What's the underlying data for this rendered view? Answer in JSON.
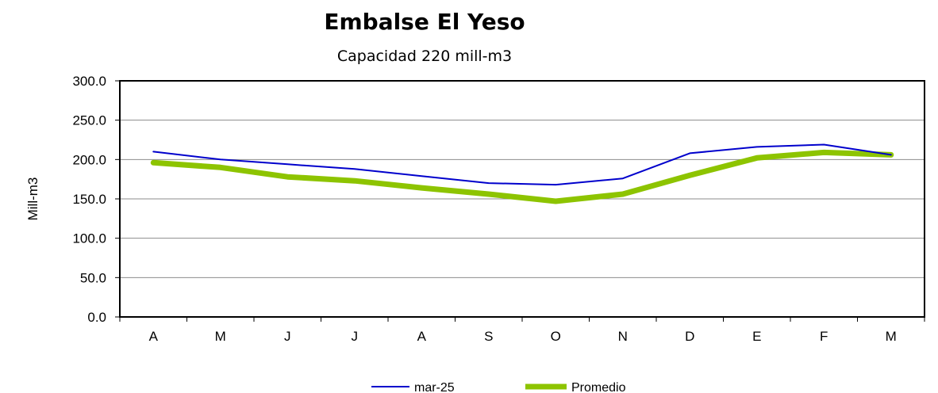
{
  "chart_data": {
    "type": "line",
    "title": "Embalse El Yeso",
    "subtitle": "Capacidad 220 mill-m3",
    "ylabel": "Mill-m3",
    "xlabel": "",
    "categories": [
      "A",
      "M",
      "J",
      "J",
      "A",
      "S",
      "O",
      "N",
      "D",
      "E",
      "F",
      "M"
    ],
    "ylim": [
      0,
      300
    ],
    "yticks": [
      "0.0",
      "50.0",
      "100.0",
      "150.0",
      "200.0",
      "250.0",
      "300.0"
    ],
    "grid": true,
    "legend_position": "bottom",
    "series": [
      {
        "name": "mar-25",
        "color": "#0000CC",
        "values": [
          210,
          200,
          194,
          188,
          179,
          170,
          168,
          176,
          208,
          216,
          219,
          206
        ]
      },
      {
        "name": "Promedio",
        "color": "#8DC400",
        "values": [
          196,
          190,
          178,
          173,
          164,
          156,
          147,
          156,
          180,
          202,
          209,
          206
        ]
      }
    ]
  }
}
